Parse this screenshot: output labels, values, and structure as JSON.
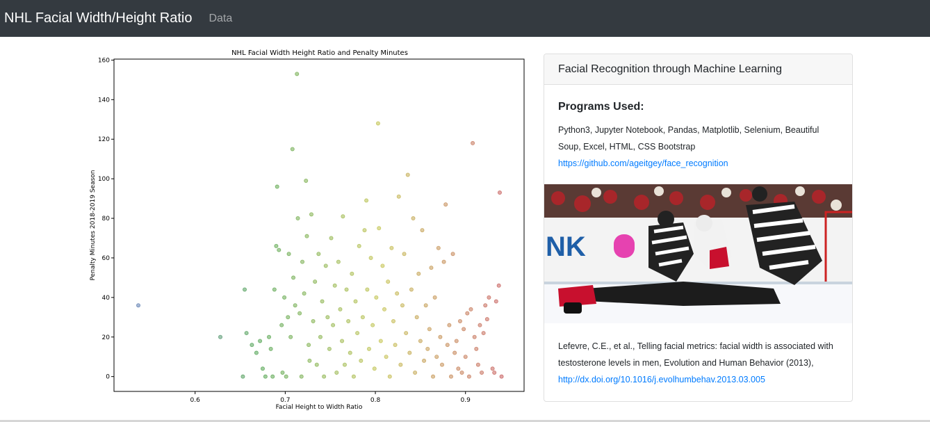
{
  "navbar": {
    "brand": "NHL Facial Width/Height Ratio",
    "link": "Data"
  },
  "chart_data": {
    "type": "scatter",
    "title": "NHL Facial Width Height Ratio and Penalty Minutes",
    "xlabel": "Facial Height to Width Ratio",
    "ylabel": "Penalty Minutes 2018-2019 Season",
    "xlim": [
      0.51,
      0.965
    ],
    "ylim": [
      -7.5,
      160.5
    ],
    "xticks": [
      0.6,
      0.7,
      0.8,
      0.9
    ],
    "yticks": [
      0,
      20,
      40,
      60,
      80,
      100,
      120,
      140,
      160
    ],
    "color_scale": [
      "#4b6fa8",
      "#3e9a3e",
      "#bdbd3a",
      "#c14c4c"
    ],
    "points": [
      [
        0.537,
        36
      ],
      [
        0.628,
        20
      ],
      [
        0.653,
        0
      ],
      [
        0.655,
        44
      ],
      [
        0.657,
        22
      ],
      [
        0.663,
        16
      ],
      [
        0.668,
        12
      ],
      [
        0.672,
        18
      ],
      [
        0.675,
        4
      ],
      [
        0.678,
        0
      ],
      [
        0.682,
        20
      ],
      [
        0.684,
        14
      ],
      [
        0.686,
        0
      ],
      [
        0.688,
        44
      ],
      [
        0.69,
        66
      ],
      [
        0.691,
        96
      ],
      [
        0.693,
        64
      ],
      [
        0.696,
        26
      ],
      [
        0.697,
        2
      ],
      [
        0.699,
        40
      ],
      [
        0.701,
        0
      ],
      [
        0.703,
        30
      ],
      [
        0.704,
        62
      ],
      [
        0.706,
        20
      ],
      [
        0.708,
        115
      ],
      [
        0.709,
        50
      ],
      [
        0.711,
        36
      ],
      [
        0.713,
        153
      ],
      [
        0.714,
        80
      ],
      [
        0.716,
        32
      ],
      [
        0.718,
        0
      ],
      [
        0.719,
        58
      ],
      [
        0.721,
        42
      ],
      [
        0.723,
        99
      ],
      [
        0.724,
        71
      ],
      [
        0.726,
        16
      ],
      [
        0.727,
        8
      ],
      [
        0.729,
        82
      ],
      [
        0.731,
        28
      ],
      [
        0.733,
        48
      ],
      [
        0.735,
        6
      ],
      [
        0.737,
        62
      ],
      [
        0.739,
        20
      ],
      [
        0.741,
        38
      ],
      [
        0.743,
        0
      ],
      [
        0.745,
        56
      ],
      [
        0.747,
        30
      ],
      [
        0.749,
        14
      ],
      [
        0.751,
        70
      ],
      [
        0.753,
        26
      ],
      [
        0.755,
        46
      ],
      [
        0.757,
        2
      ],
      [
        0.759,
        58
      ],
      [
        0.761,
        34
      ],
      [
        0.763,
        18
      ],
      [
        0.764,
        81
      ],
      [
        0.766,
        6
      ],
      [
        0.768,
        44
      ],
      [
        0.77,
        28
      ],
      [
        0.772,
        12
      ],
      [
        0.774,
        52
      ],
      [
        0.776,
        0
      ],
      [
        0.778,
        38
      ],
      [
        0.78,
        22
      ],
      [
        0.782,
        66
      ],
      [
        0.784,
        8
      ],
      [
        0.786,
        30
      ],
      [
        0.788,
        74
      ],
      [
        0.79,
        89
      ],
      [
        0.791,
        44
      ],
      [
        0.793,
        14
      ],
      [
        0.795,
        60
      ],
      [
        0.797,
        26
      ],
      [
        0.799,
        4
      ],
      [
        0.801,
        40
      ],
      [
        0.803,
        128
      ],
      [
        0.804,
        75
      ],
      [
        0.806,
        18
      ],
      [
        0.808,
        56
      ],
      [
        0.81,
        34
      ],
      [
        0.812,
        10
      ],
      [
        0.814,
        48
      ],
      [
        0.816,
        0
      ],
      [
        0.818,
        65
      ],
      [
        0.82,
        28
      ],
      [
        0.822,
        16
      ],
      [
        0.824,
        42
      ],
      [
        0.826,
        91
      ],
      [
        0.828,
        6
      ],
      [
        0.83,
        36
      ],
      [
        0.832,
        62
      ],
      [
        0.834,
        22
      ],
      [
        0.836,
        102
      ],
      [
        0.838,
        12
      ],
      [
        0.84,
        44
      ],
      [
        0.842,
        80
      ],
      [
        0.844,
        2
      ],
      [
        0.846,
        30
      ],
      [
        0.848,
        52
      ],
      [
        0.85,
        18
      ],
      [
        0.852,
        74
      ],
      [
        0.854,
        8
      ],
      [
        0.856,
        36
      ],
      [
        0.858,
        14
      ],
      [
        0.86,
        24
      ],
      [
        0.862,
        55
      ],
      [
        0.864,
        0
      ],
      [
        0.866,
        40
      ],
      [
        0.868,
        10
      ],
      [
        0.87,
        65
      ],
      [
        0.872,
        20
      ],
      [
        0.874,
        6
      ],
      [
        0.876,
        58
      ],
      [
        0.878,
        87
      ],
      [
        0.88,
        16
      ],
      [
        0.882,
        26
      ],
      [
        0.884,
        0
      ],
      [
        0.886,
        62
      ],
      [
        0.888,
        12
      ],
      [
        0.89,
        18
      ],
      [
        0.892,
        4
      ],
      [
        0.894,
        28
      ],
      [
        0.896,
        2
      ],
      [
        0.898,
        24
      ],
      [
        0.9,
        10
      ],
      [
        0.902,
        32
      ],
      [
        0.904,
        0
      ],
      [
        0.906,
        34
      ],
      [
        0.908,
        118
      ],
      [
        0.91,
        20
      ],
      [
        0.912,
        14
      ],
      [
        0.914,
        6
      ],
      [
        0.916,
        26
      ],
      [
        0.918,
        2
      ],
      [
        0.92,
        22
      ],
      [
        0.922,
        36
      ],
      [
        0.924,
        29
      ],
      [
        0.926,
        40
      ],
      [
        0.93,
        4
      ],
      [
        0.932,
        2
      ],
      [
        0.934,
        38
      ],
      [
        0.937,
        46
      ],
      [
        0.938,
        93
      ],
      [
        0.94,
        0
      ]
    ]
  },
  "card": {
    "header": "Facial Recognition through Machine Learning",
    "programs_title": "Programs Used:",
    "programs_text": "Python3, Jupyter Notebook, Pandas, Matplotlib, Selenium, Beautiful Soup, Excel, HTML, CSS Bootstrap",
    "repo_link": "https://github.com/ageitgey/face_recognition",
    "reference_text": "Lefevre, C.E., et al., Telling facial metrics: facial width is associated with testosterone levels in men, Evolution and Human Behavior (2013),",
    "reference_link": "http://dx.doi.org/10.1016/j.evolhumbehav.2013.03.005"
  }
}
